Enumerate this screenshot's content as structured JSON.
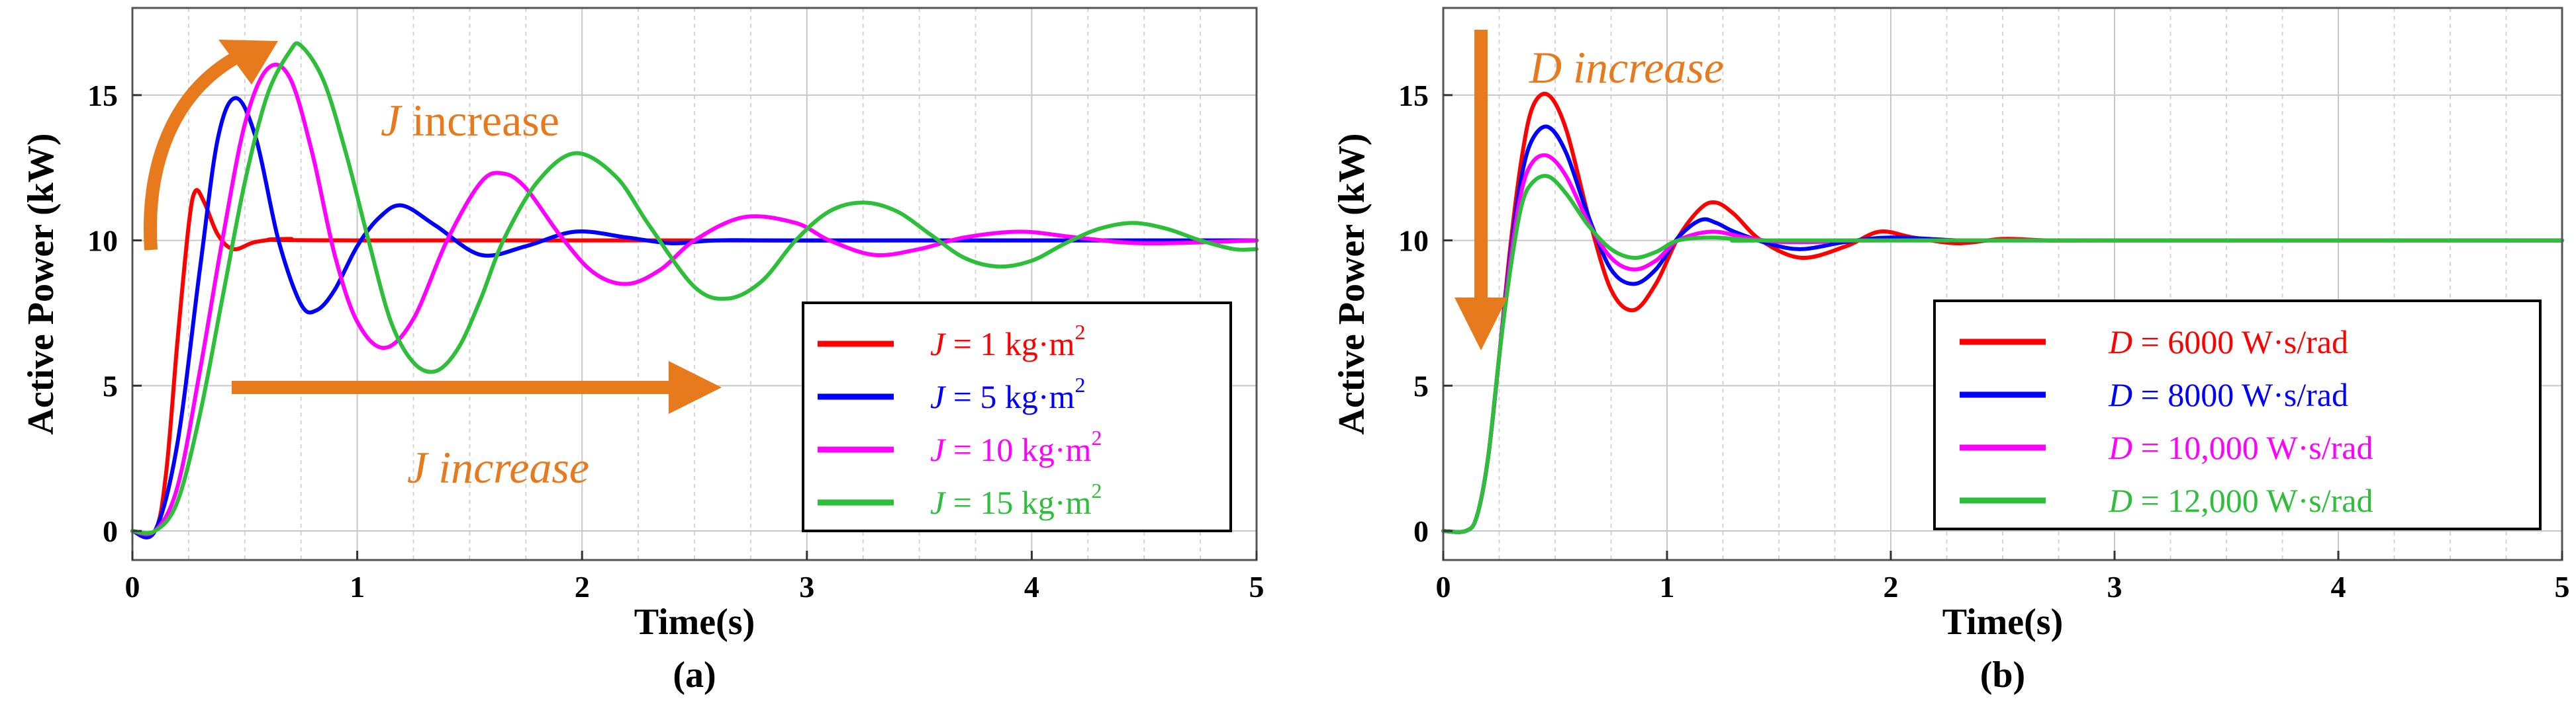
{
  "chart_data": [
    {
      "panel": "(a)",
      "type": "line",
      "xlabel": "Time(s)",
      "ylabel": "Active Power (kW)",
      "xlim": [
        0,
        5
      ],
      "ylim": [
        -1,
        18
      ],
      "xticks": [
        0,
        1,
        2,
        3,
        4,
        5
      ],
      "yticks": [
        0,
        5,
        10,
        15
      ],
      "grid": true,
      "legend_position": "bottom-right",
      "annotations": [
        {
          "symbol": "J",
          "text": " increase",
          "direction": "up",
          "color": "#E87A1E"
        },
        {
          "symbol": "J",
          "text": " increase",
          "direction": "right",
          "color": "#E87A1E"
        }
      ],
      "series": [
        {
          "name": "J = 1 kg·m²",
          "symbol": "J",
          "label": " = 1 kg·m",
          "sup": "2",
          "color": "#FF0000",
          "x": [
            0,
            0.1,
            0.15,
            0.2,
            0.25,
            0.28,
            0.32,
            0.38,
            0.45,
            0.55,
            0.7,
            1.0,
            5.0
          ],
          "y": [
            0,
            0,
            2,
            6.5,
            10.5,
            11.7,
            11.3,
            10.2,
            9.7,
            9.95,
            10.05,
            10,
            10
          ]
        },
        {
          "name": "J = 5 kg·m²",
          "symbol": "J",
          "label": " = 5 kg·m",
          "sup": "2",
          "color": "#0000FF",
          "x": [
            0,
            0.1,
            0.2,
            0.3,
            0.38,
            0.46,
            0.55,
            0.65,
            0.75,
            0.82,
            0.9,
            1.0,
            1.1,
            1.2,
            1.35,
            1.55,
            1.75,
            1.97,
            2.2,
            2.4,
            2.6,
            3.0,
            5.0
          ],
          "y": [
            0,
            0,
            3,
            9,
            13.5,
            14.9,
            13.5,
            10,
            7.8,
            7.6,
            8.3,
            9.8,
            10.8,
            11.2,
            10.5,
            9.5,
            9.8,
            10.3,
            10.1,
            9.9,
            10,
            10,
            10
          ]
        },
        {
          "name": "J = 10 kg·m²",
          "symbol": "J",
          "label": " = 10 kg·m",
          "sup": "2",
          "color": "#FF00FF",
          "x": [
            0,
            0.1,
            0.2,
            0.3,
            0.4,
            0.5,
            0.6,
            0.7,
            0.8,
            0.9,
            1.0,
            1.12,
            1.25,
            1.4,
            1.55,
            1.65,
            1.75,
            1.9,
            2.05,
            2.2,
            2.35,
            2.5,
            2.72,
            2.95,
            3.1,
            3.3,
            3.5,
            3.7,
            3.95,
            4.2,
            4.5,
            5.0
          ],
          "y": [
            0,
            0,
            1.5,
            5.5,
            10,
            14,
            15.9,
            15.6,
            13,
            9.5,
            7.2,
            6.3,
            7.3,
            10,
            12,
            12.3,
            11.8,
            10.2,
            8.9,
            8.5,
            9,
            10,
            10.8,
            10.6,
            10,
            9.5,
            9.7,
            10.1,
            10.3,
            10.1,
            9.9,
            10
          ]
        },
        {
          "name": "J = 15 kg·m²",
          "symbol": "J",
          "label": " = 15 kg·m",
          "sup": "2",
          "color": "#2DBE3A",
          "x": [
            0,
            0.1,
            0.2,
            0.3,
            0.4,
            0.5,
            0.6,
            0.7,
            0.75,
            0.85,
            0.95,
            1.05,
            1.15,
            1.25,
            1.35,
            1.45,
            1.55,
            1.65,
            1.8,
            1.97,
            2.15,
            2.3,
            2.5,
            2.65,
            2.8,
            2.95,
            3.1,
            3.25,
            3.4,
            3.55,
            3.7,
            3.85,
            4.0,
            4.15,
            4.3,
            4.45,
            4.6,
            4.75,
            4.9,
            5.0
          ],
          "y": [
            0,
            0,
            1,
            4,
            8,
            12,
            15,
            16.5,
            16.7,
            15.5,
            13,
            10,
            7.2,
            5.8,
            5.5,
            6.3,
            8,
            10,
            12,
            13,
            12.2,
            10.5,
            8.4,
            8,
            8.6,
            10,
            11,
            11.3,
            11,
            10.2,
            9.4,
            9.1,
            9.3,
            9.9,
            10.4,
            10.6,
            10.4,
            10,
            9.7,
            9.7
          ]
        }
      ]
    },
    {
      "panel": "(b)",
      "type": "line",
      "xlabel": "Time(s)",
      "ylabel": "Active Power (kW)",
      "xlim": [
        0,
        5
      ],
      "ylim": [
        -1,
        18
      ],
      "xticks": [
        0,
        1,
        2,
        3,
        4,
        5
      ],
      "yticks": [
        0,
        5,
        10,
        15
      ],
      "grid": true,
      "legend_position": "bottom-right",
      "annotations": [
        {
          "symbol": "D",
          "text": " increase",
          "direction": "down",
          "color": "#E87A1E"
        }
      ],
      "series": [
        {
          "name": "D = 6000 W·s/rad",
          "symbol": "D",
          "label": " = 6000 W·s/rad",
          "color": "#FF0000",
          "x": [
            0,
            0.1,
            0.15,
            0.2,
            0.25,
            0.3,
            0.35,
            0.4,
            0.47,
            0.55,
            0.65,
            0.75,
            0.85,
            0.95,
            1.05,
            1.15,
            1.22,
            1.3,
            1.42,
            1.6,
            1.8,
            1.95,
            2.1,
            2.3,
            2.5,
            2.7,
            3.0,
            5.0
          ],
          "y": [
            0,
            0,
            0.5,
            2.5,
            6,
            9.8,
            12.8,
            14.6,
            15,
            13.8,
            10.8,
            8.3,
            7.6,
            8.5,
            10.1,
            11.1,
            11.3,
            10.9,
            10,
            9.4,
            9.8,
            10.3,
            10.1,
            9.9,
            10.05,
            10,
            10,
            10
          ]
        },
        {
          "name": "D = 8000 W·s/rad",
          "symbol": "D",
          "label": " = 8000 W·s/rad",
          "color": "#0000FF",
          "x": [
            0,
            0.1,
            0.15,
            0.2,
            0.25,
            0.3,
            0.35,
            0.4,
            0.47,
            0.55,
            0.65,
            0.75,
            0.85,
            0.95,
            1.05,
            1.15,
            1.22,
            1.3,
            1.45,
            1.6,
            1.8,
            2.0,
            2.3,
            2.5,
            5.0
          ],
          "y": [
            0,
            0,
            0.5,
            2.5,
            6,
            9.5,
            12.2,
            13.5,
            13.9,
            13,
            10.8,
            9,
            8.5,
            9,
            10.1,
            10.7,
            10.6,
            10.3,
            9.9,
            9.7,
            9.95,
            10.1,
            10,
            10,
            10
          ]
        },
        {
          "name": "D = 10,000 W·s/rad",
          "symbol": "D",
          "label": " = 10,000 W·s/rad",
          "color": "#FF00FF",
          "x": [
            0,
            0.1,
            0.15,
            0.2,
            0.25,
            0.3,
            0.35,
            0.4,
            0.47,
            0.55,
            0.65,
            0.75,
            0.85,
            0.95,
            1.05,
            1.2,
            1.35,
            1.5,
            1.7,
            2.0,
            5.0
          ],
          "y": [
            0,
            0,
            0.5,
            2.5,
            6,
            9.3,
            11.7,
            12.7,
            12.9,
            12.2,
            10.6,
            9.4,
            9,
            9.3,
            10,
            10.3,
            10.1,
            9.95,
            9.95,
            10,
            10
          ]
        },
        {
          "name": "D = 12,000 W·s/rad",
          "symbol": "D",
          "label": " = 12,000 W·s/rad",
          "color": "#2DBE3A",
          "x": [
            0,
            0.1,
            0.15,
            0.2,
            0.25,
            0.3,
            0.35,
            0.4,
            0.47,
            0.55,
            0.65,
            0.75,
            0.85,
            0.95,
            1.05,
            1.2,
            1.4,
            1.6,
            5.0
          ],
          "y": [
            0,
            0,
            0.5,
            2.5,
            6,
            9,
            11.2,
            12,
            12.2,
            11.6,
            10.5,
            9.7,
            9.4,
            9.6,
            10,
            10.1,
            10,
            10,
            10
          ]
        }
      ]
    }
  ]
}
